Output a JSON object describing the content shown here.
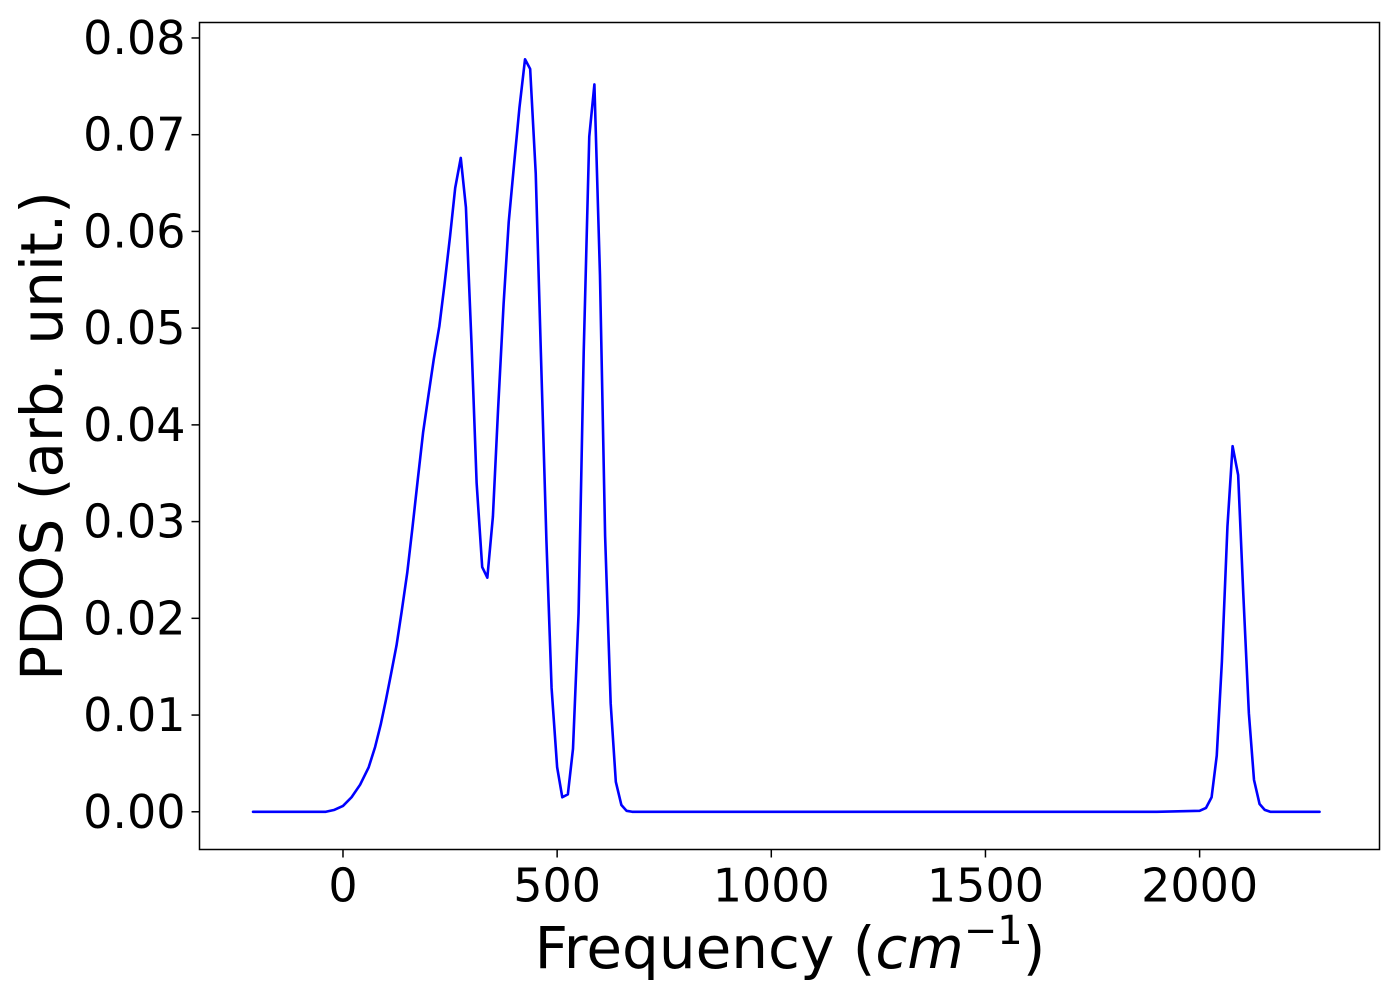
{
  "chart_data": {
    "type": "line",
    "title": "",
    "xlabel": {
      "prefix": "Frequency (",
      "unit": "cm",
      "exponent": "−1",
      "suffix": ")"
    },
    "ylabel": "PDOS (arb. unit.)",
    "xlim": [
      -335,
      2420
    ],
    "ylim": [
      -0.0039,
      0.0816
    ],
    "xticks": [
      0,
      500,
      1000,
      1500,
      2000
    ],
    "xtick_labels": [
      "0",
      "500",
      "1000",
      "1500",
      "2000"
    ],
    "yticks": [
      0.0,
      0.01,
      0.02,
      0.03,
      0.04,
      0.05,
      0.06,
      0.07,
      0.08
    ],
    "ytick_labels": [
      "0.00",
      "0.01",
      "0.02",
      "0.03",
      "0.04",
      "0.05",
      "0.06",
      "0.07",
      "0.08"
    ],
    "grid": false,
    "legend": null,
    "series": [
      {
        "color": "#0000ff",
        "x": [
          -210,
          -100,
          -40,
          -20,
          0,
          20,
          40,
          60,
          75,
          88,
          100,
          112,
          125,
          137,
          150,
          162,
          175,
          187,
          200,
          212,
          225,
          237,
          250,
          262,
          275,
          287,
          300,
          312,
          325,
          337,
          350,
          362,
          375,
          387,
          400,
          412,
          425,
          437,
          450,
          462,
          475,
          487,
          500,
          512,
          525,
          537,
          550,
          562,
          575,
          587,
          600,
          612,
          625,
          637,
          650,
          662,
          675,
          690,
          710,
          800,
          1000,
          1500,
          1900,
          2000,
          2015,
          2028,
          2040,
          2052,
          2065,
          2077,
          2090,
          2102,
          2115,
          2127,
          2140,
          2152,
          2165,
          2180,
          2200,
          2280
        ],
        "y": [
          0.0,
          0.0,
          0.0,
          0.0002,
          0.0006,
          0.0015,
          0.0028,
          0.0046,
          0.0067,
          0.009,
          0.0115,
          0.0142,
          0.0172,
          0.0207,
          0.0247,
          0.0293,
          0.0345,
          0.0392,
          0.0432,
          0.0468,
          0.0502,
          0.0545,
          0.0595,
          0.0645,
          0.0676,
          0.0625,
          0.0485,
          0.034,
          0.0253,
          0.0242,
          0.0305,
          0.0415,
          0.0525,
          0.061,
          0.0672,
          0.0728,
          0.0778,
          0.0768,
          0.066,
          0.0475,
          0.028,
          0.0128,
          0.0046,
          0.0015,
          0.0018,
          0.0065,
          0.0205,
          0.0475,
          0.0698,
          0.0752,
          0.0555,
          0.0285,
          0.0112,
          0.0031,
          0.0007,
          0.0001,
          0.0,
          0.0,
          0.0,
          0.0,
          0.0,
          0.0,
          0.0,
          0.0001,
          0.0004,
          0.0015,
          0.0058,
          0.0155,
          0.0295,
          0.0378,
          0.0348,
          0.0225,
          0.0102,
          0.0033,
          0.0008,
          0.0002,
          0.0,
          0.0,
          0.0,
          0.0
        ]
      }
    ]
  }
}
